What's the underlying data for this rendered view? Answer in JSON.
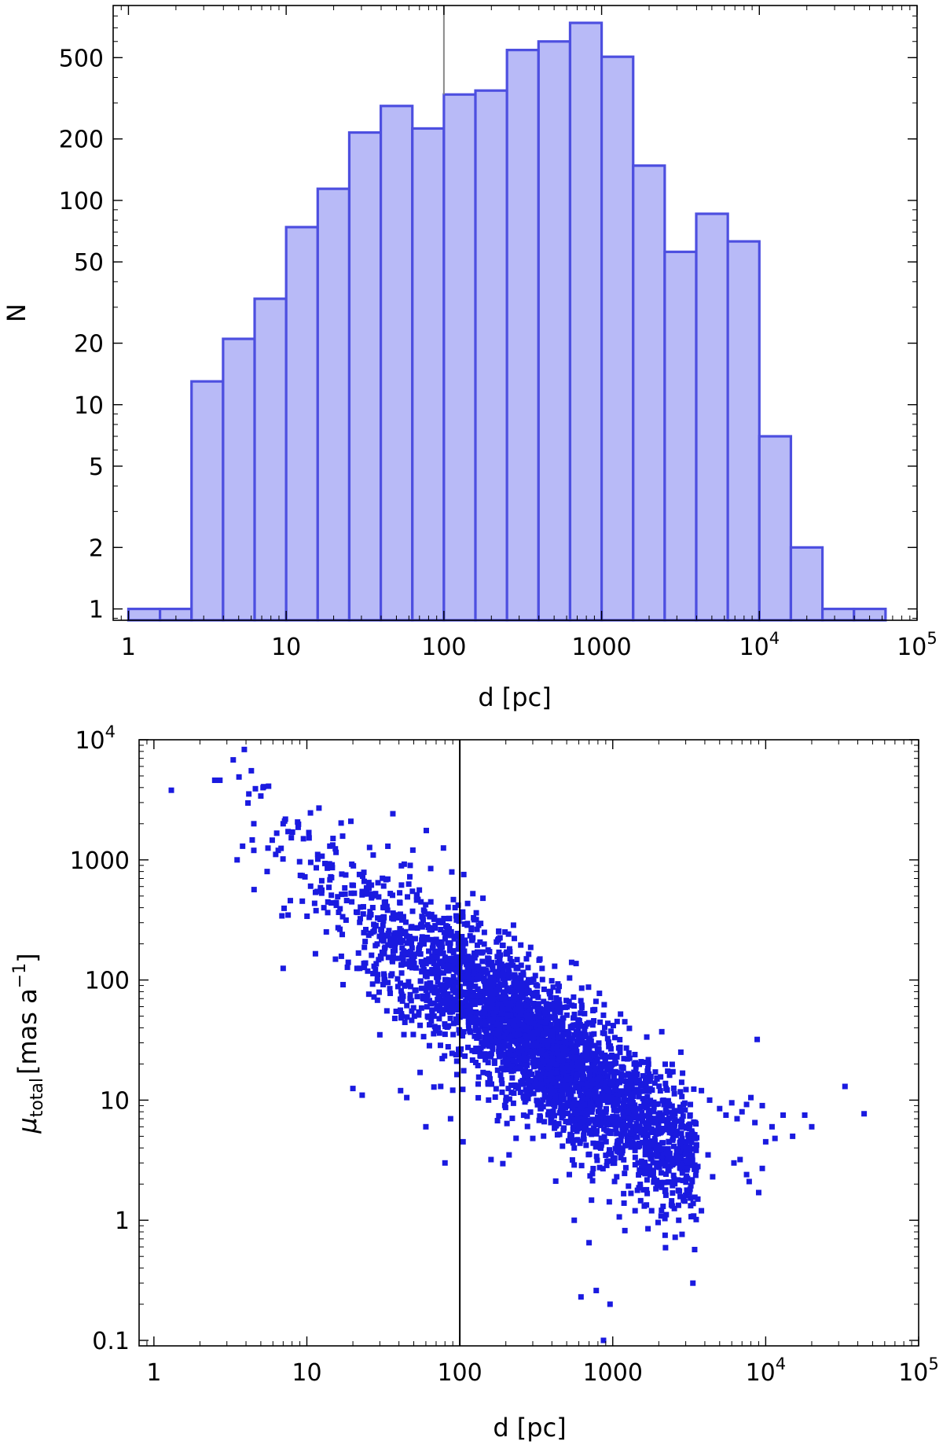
{
  "chart_data": [
    {
      "type": "bar",
      "subtype": "histogram",
      "xscale": "log",
      "yscale": "log",
      "xlim": [
        0.8,
        100000
      ],
      "ylim": [
        0.88,
        900
      ],
      "xlabel": "d [pc]",
      "ylabel": "N",
      "bar_fill": "#b8baf7",
      "bar_edge": "#4d4fe0",
      "vline_x": 100,
      "vline_color": "#888888",
      "x_ticks": [
        {
          "value": 1,
          "label": "1"
        },
        {
          "value": 10,
          "label": "10"
        },
        {
          "value": 100,
          "label": "100"
        },
        {
          "value": 1000,
          "label": "1000"
        },
        {
          "value": 10000,
          "label": "10",
          "exponent": "4"
        },
        {
          "value": 100000,
          "label": "10",
          "exponent": "5"
        }
      ],
      "y_ticks": [
        {
          "value": 1,
          "label": "1"
        },
        {
          "value": 2,
          "label": "2"
        },
        {
          "value": 5,
          "label": "5"
        },
        {
          "value": 10,
          "label": "10"
        },
        {
          "value": 20,
          "label": "20"
        },
        {
          "value": 50,
          "label": "50"
        },
        {
          "value": 100,
          "label": "100"
        },
        {
          "value": 200,
          "label": "200"
        },
        {
          "value": 500,
          "label": "500"
        }
      ],
      "bins": [
        {
          "x0": 1.0,
          "x1": 1.585,
          "count": 1
        },
        {
          "x0": 1.585,
          "x1": 2.512,
          "count": 1
        },
        {
          "x0": 2.512,
          "x1": 3.981,
          "count": 13
        },
        {
          "x0": 3.981,
          "x1": 6.31,
          "count": 21
        },
        {
          "x0": 6.31,
          "x1": 10.0,
          "count": 33
        },
        {
          "x0": 10.0,
          "x1": 15.85,
          "count": 74
        },
        {
          "x0": 15.85,
          "x1": 25.12,
          "count": 114
        },
        {
          "x0": 25.12,
          "x1": 39.81,
          "count": 215
        },
        {
          "x0": 39.81,
          "x1": 63.1,
          "count": 290
        },
        {
          "x0": 63.1,
          "x1": 100.0,
          "count": 225
        },
        {
          "x0": 100.0,
          "x1": 158.5,
          "count": 330
        },
        {
          "x0": 158.5,
          "x1": 251.2,
          "count": 345
        },
        {
          "x0": 251.2,
          "x1": 398.1,
          "count": 545
        },
        {
          "x0": 398.1,
          "x1": 631.0,
          "count": 600
        },
        {
          "x0": 631.0,
          "x1": 1000.0,
          "count": 740
        },
        {
          "x0": 1000.0,
          "x1": 1585.0,
          "count": 505
        },
        {
          "x0": 1585.0,
          "x1": 2512.0,
          "count": 148
        },
        {
          "x0": 2512.0,
          "x1": 3981.0,
          "count": 56
        },
        {
          "x0": 3981.0,
          "x1": 6310.0,
          "count": 86
        },
        {
          "x0": 6310.0,
          "x1": 10000.0,
          "count": 63
        },
        {
          "x0": 10000.0,
          "x1": 15850.0,
          "count": 7
        },
        {
          "x0": 15850.0,
          "x1": 25120.0,
          "count": 2
        },
        {
          "x0": 25120.0,
          "x1": 39810.0,
          "count": 1
        },
        {
          "x0": 39810.0,
          "x1": 63100.0,
          "count": 1
        }
      ]
    },
    {
      "type": "scatter",
      "xscale": "log",
      "yscale": "log",
      "xlim": [
        0.8,
        100000
      ],
      "ylim": [
        0.09,
        10000
      ],
      "xlabel": "d [pc]",
      "ylabel_main": "μ",
      "ylabel_sub": "total",
      "ylabel_unit": "[mas a",
      "ylabel_exp": "−1",
      "ylabel_close": "]",
      "point_color": "#1a1ae0",
      "vline_x": 100,
      "vline_color": "#000000",
      "x_ticks": [
        {
          "value": 1,
          "label": "1"
        },
        {
          "value": 10,
          "label": "10"
        },
        {
          "value": 100,
          "label": "100"
        },
        {
          "value": 1000,
          "label": "1000"
        },
        {
          "value": 10000,
          "label": "10",
          "exponent": "4"
        },
        {
          "value": 100000,
          "label": "10",
          "exponent": "5"
        }
      ],
      "y_ticks": [
        {
          "value": 0.1,
          "label": "0.1"
        },
        {
          "value": 1,
          "label": "1"
        },
        {
          "value": 10,
          "label": "10"
        },
        {
          "value": 100,
          "label": "100"
        },
        {
          "value": 1000,
          "label": "1000"
        },
        {
          "value": 10000,
          "label": "10",
          "exponent": "4"
        }
      ],
      "points": [
        [
          1.3,
          3800
        ],
        [
          2.5,
          4600
        ],
        [
          2.7,
          4600
        ],
        [
          3.3,
          6800
        ],
        [
          3.9,
          8300
        ],
        [
          3.6,
          4900
        ],
        [
          3.5,
          1000
        ],
        [
          3.8,
          1300
        ],
        [
          5.0,
          3400
        ],
        [
          4.5,
          2000
        ],
        [
          7.0,
          2000
        ],
        [
          8.0,
          1700
        ],
        [
          9.5,
          1500
        ],
        [
          12,
          2700
        ],
        [
          6.5,
          1200
        ],
        [
          5.5,
          800
        ],
        [
          4.5,
          1200
        ],
        [
          7.0,
          125
        ],
        [
          20,
          12.5
        ],
        [
          23,
          11
        ],
        [
          41,
          12
        ],
        [
          60,
          6
        ],
        [
          80,
          3
        ],
        [
          87,
          7
        ],
        [
          45,
          10.5
        ],
        [
          30,
          35
        ],
        [
          55,
          17
        ],
        [
          75,
          13
        ],
        [
          100,
          24
        ],
        [
          105,
          4.5
        ],
        [
          160,
          3.2
        ],
        [
          210,
          3.5
        ],
        [
          300,
          4.8
        ],
        [
          520,
          2.4
        ],
        [
          560,
          1.0
        ],
        [
          700,
          0.65
        ],
        [
          620,
          0.23
        ],
        [
          780,
          0.26
        ],
        [
          960,
          0.2
        ],
        [
          870,
          0.1
        ],
        [
          1200,
          0.82
        ],
        [
          1400,
          1.2
        ],
        [
          1700,
          0.85
        ],
        [
          2200,
          0.75
        ],
        [
          2700,
          1.0
        ],
        [
          3600,
          1.5
        ],
        [
          3800,
          1.2
        ],
        [
          4500,
          2.3
        ],
        [
          6200,
          3.0
        ],
        [
          6800,
          3.2
        ],
        [
          7500,
          2.4
        ],
        [
          7800,
          2.1
        ],
        [
          9000,
          1.7
        ],
        [
          9500,
          2.7
        ],
        [
          3800,
          12
        ],
        [
          4300,
          10
        ],
        [
          5000,
          8.5
        ],
        [
          5500,
          7.5
        ],
        [
          6000,
          9.5
        ],
        [
          6500,
          7.0
        ],
        [
          7000,
          8.0
        ],
        [
          7500,
          9.2
        ],
        [
          8000,
          10.5
        ],
        [
          8500,
          6.5
        ],
        [
          9500,
          9.0
        ],
        [
          8800,
          32
        ],
        [
          10000,
          4.5
        ],
        [
          11000,
          6.0
        ],
        [
          11500,
          4.8
        ],
        [
          13000,
          7.5
        ],
        [
          15000,
          5.0
        ],
        [
          18000,
          7.5
        ],
        [
          20000,
          6.0
        ],
        [
          33000,
          13
        ],
        [
          44000,
          7.7
        ],
        [
          4200,
          3.5
        ],
        [
          3600,
          2.8
        ],
        [
          3000,
          4.5
        ]
      ],
      "cloud": {
        "n": 3500,
        "center_log10_d": 2.5,
        "sd_log10_d": 0.62,
        "slope": -0.95,
        "intercept_log10_mu": 3.85,
        "scatter_sd": 0.3,
        "seed": 12345
      }
    }
  ]
}
